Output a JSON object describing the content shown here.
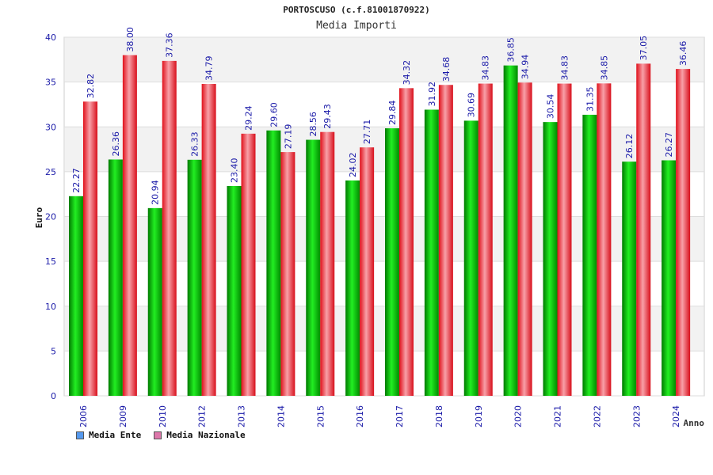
{
  "chart_data": {
    "type": "bar",
    "title": "PORTOSCUSO (c.f.81001870922)",
    "subtitle": "Media Importi",
    "xlabel": "Anno",
    "ylabel": "Euro",
    "ylim": [
      0,
      40
    ],
    "yticks": [
      0,
      5,
      10,
      15,
      20,
      25,
      30,
      35,
      40
    ],
    "categories": [
      "2006",
      "2009",
      "2010",
      "2012",
      "2013",
      "2014",
      "2015",
      "2016",
      "2017",
      "2018",
      "2019",
      "2020",
      "2021",
      "2022",
      "2023",
      "2024"
    ],
    "series": [
      {
        "name": "Media Ente",
        "color": "#00c000",
        "legend_color": "#5599ee",
        "values": [
          22.27,
          26.36,
          20.94,
          26.33,
          23.4,
          29.6,
          28.56,
          24.02,
          29.84,
          31.92,
          30.69,
          36.85,
          30.54,
          31.35,
          26.12,
          26.27
        ],
        "labels": [
          "22.27",
          "26.36",
          "20.94",
          "26.33",
          "23.40",
          "29.60",
          "28.56",
          "24.02",
          "29.84",
          "31.92",
          "30.69",
          "36.85",
          "30.54",
          "31.35",
          "26.12",
          "26.27"
        ]
      },
      {
        "name": "Media Nazionale",
        "color": "#e8202a",
        "legend_color": "#dd77aa",
        "values": [
          32.82,
          38.0,
          37.36,
          34.79,
          29.24,
          27.19,
          29.43,
          27.71,
          34.32,
          34.68,
          34.83,
          34.94,
          34.83,
          34.85,
          37.05,
          36.46
        ],
        "labels": [
          "32.82",
          "38.00",
          "37.36",
          "34.79",
          "29.24",
          "27.19",
          "29.43",
          "27.71",
          "34.32",
          "34.68",
          "34.83",
          "34.94",
          "34.83",
          "34.85",
          "37.05",
          "36.46"
        ]
      }
    ],
    "legend": "bottom-left"
  }
}
